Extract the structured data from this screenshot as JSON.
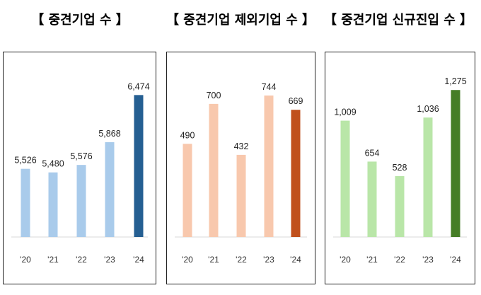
{
  "chart_data": [
    {
      "type": "bar",
      "title": "【 중견기업 수 】",
      "categories": [
        "'20",
        "'21",
        "'22",
        "'23",
        "'24"
      ],
      "values": [
        5526,
        5480,
        5576,
        5868,
        6474
      ],
      "value_labels": [
        "5,526",
        "5,480",
        "5,576",
        "5,868",
        "6,474"
      ],
      "colors": [
        "#a9cbeb",
        "#a9cbeb",
        "#a9cbeb",
        "#a9cbeb",
        "#255f92"
      ],
      "ylim": [
        4650,
        6650
      ]
    },
    {
      "type": "bar",
      "title": "【 중견기업 제외기업 수 】",
      "categories": [
        "'20",
        "'21",
        "'22",
        "'23",
        "'24"
      ],
      "values": [
        490,
        700,
        432,
        744,
        669
      ],
      "value_labels": [
        "490",
        "700",
        "432",
        "744",
        "669"
      ],
      "colors": [
        "#f8c8ad",
        "#f8c8ad",
        "#f8c8ad",
        "#f8c8ad",
        "#c0501c"
      ],
      "ylim": [
        0,
        800
      ]
    },
    {
      "type": "bar",
      "title": "【 중견기업 신규진입 수 】",
      "categories": [
        "'20",
        "'21",
        "'22",
        "'23",
        "'24"
      ],
      "values": [
        1009,
        654,
        528,
        1036,
        1275
      ],
      "value_labels": [
        "1,009",
        "654",
        "528",
        "1,036",
        "1,275"
      ],
      "colors": [
        "#b9e6a8",
        "#b9e6a8",
        "#b9e6a8",
        "#b9e6a8",
        "#457d26"
      ],
      "ylim": [
        0,
        1350
      ]
    }
  ]
}
